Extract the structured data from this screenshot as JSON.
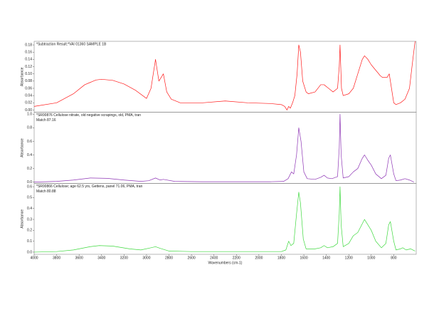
{
  "chart_data": [
    {
      "type": "line",
      "title": "*Subtraction Result:*VAI 01360 SAMPLE 1B",
      "y_label": "Absorbance",
      "xlim": [
        4000,
        600
      ],
      "ylim": [
        -0.006,
        0.19
      ],
      "yticks": [
        {
          "value": 0,
          "label": "0.00"
        },
        0.02,
        0.04,
        0.06,
        0.08,
        {
          "value": 0.1,
          "label": "0.10"
        },
        0.12,
        0.14,
        0.16,
        0.18
      ],
      "color": "#ff1a1a",
      "x": [
        4000,
        3800,
        3650,
        3550,
        3450,
        3400,
        3300,
        3200,
        3100,
        3000,
        2960,
        2920,
        2890,
        2870,
        2850,
        2820,
        2780,
        2700,
        2500,
        2300,
        2100,
        1900,
        1800,
        1770,
        1750,
        1735,
        1720,
        1700,
        1680,
        1660,
        1645,
        1630,
        1610,
        1580,
        1560,
        1500,
        1450,
        1420,
        1380,
        1340,
        1300,
        1285,
        1278,
        1265,
        1250,
        1200,
        1160,
        1120,
        1080,
        1060,
        1030,
        1000,
        960,
        920,
        900,
        860,
        840,
        820,
        800,
        780,
        740,
        700,
        660,
        630,
        610
      ],
      "values": [
        0.01,
        0.02,
        0.045,
        0.07,
        0.083,
        0.085,
        0.082,
        0.072,
        0.055,
        0.032,
        0.06,
        0.14,
        0.08,
        0.09,
        0.1,
        0.05,
        0.03,
        0.02,
        0.02,
        0.025,
        0.02,
        0.018,
        0.015,
        0.01,
        0.0,
        0.01,
        0.005,
        0.02,
        0.04,
        0.1,
        0.18,
        0.16,
        0.08,
        0.05,
        0.045,
        0.05,
        0.07,
        0.07,
        0.06,
        0.05,
        0.06,
        0.12,
        0.18,
        0.06,
        0.04,
        0.045,
        0.06,
        0.1,
        0.14,
        0.15,
        0.14,
        0.125,
        0.11,
        0.095,
        0.09,
        0.09,
        0.1,
        0.06,
        0.02,
        0.015,
        0.02,
        0.03,
        0.06,
        0.14,
        0.19
      ]
    },
    {
      "type": "line",
      "title": "*SR00876 Cellulose nitrate, old negative scrapings, old, PMA, tran",
      "subtitle": "Match 87.16",
      "y_label": "Absorbance",
      "xlim": [
        4000,
        600
      ],
      "ylim": [
        -0.02,
        1.03
      ],
      "yticks": [
        {
          "value": 0,
          "label": "0.0"
        },
        0.2,
        0.4,
        0.6,
        0.8,
        {
          "value": 1,
          "label": "1.0"
        }
      ],
      "color": "#8e35b5",
      "x": [
        4000,
        3800,
        3650,
        3500,
        3350,
        3200,
        3050,
        2980,
        2920,
        2880,
        2850,
        2750,
        2500,
        2200,
        1900,
        1780,
        1740,
        1710,
        1690,
        1665,
        1645,
        1625,
        1600,
        1570,
        1500,
        1450,
        1420,
        1390,
        1350,
        1300,
        1285,
        1278,
        1268,
        1250,
        1200,
        1160,
        1120,
        1080,
        1060,
        1030,
        1000,
        960,
        910,
        870,
        845,
        830,
        800,
        780,
        740,
        700,
        660,
        620
      ],
      "values": [
        0.0,
        0.01,
        0.03,
        0.06,
        0.055,
        0.03,
        0.01,
        0.02,
        0.06,
        0.03,
        0.04,
        0.01,
        0.005,
        0.005,
        0.005,
        0.01,
        0.05,
        0.15,
        0.12,
        0.4,
        0.8,
        0.6,
        0.15,
        0.05,
        0.04,
        0.07,
        0.1,
        0.06,
        0.05,
        0.08,
        0.5,
        1.0,
        0.4,
        0.06,
        0.08,
        0.15,
        0.2,
        0.35,
        0.4,
        0.32,
        0.25,
        0.12,
        0.05,
        0.1,
        0.35,
        0.4,
        0.12,
        0.02,
        0.03,
        0.05,
        0.03,
        0.0
      ]
    },
    {
      "type": "line",
      "title": "*SR00866 Cellulose; age 62.5 yrs, Gettens, panel 71.06, PMA, tran",
      "subtitle": "Match 80.88",
      "y_label": "Absorbance",
      "x_label": "Wavenumbers (cm-1)",
      "xlim": [
        4000,
        600
      ],
      "ylim": [
        -0.02,
        0.63
      ],
      "xticks": [
        4000,
        3800,
        3600,
        3400,
        3200,
        3000,
        2800,
        2600,
        2400,
        2200,
        2000,
        1800,
        1600,
        1400,
        1200,
        1000,
        800
      ],
      "yticks": [
        {
          "value": 0,
          "label": "0.0"
        },
        0.1,
        0.2,
        0.3,
        0.4,
        0.5,
        0.6
      ],
      "color": "#3fd93f",
      "x": [
        4000,
        3800,
        3650,
        3500,
        3420,
        3300,
        3150,
        3050,
        2960,
        2920,
        2880,
        2800,
        2600,
        2300,
        2000,
        1800,
        1760,
        1735,
        1715,
        1690,
        1665,
        1645,
        1630,
        1605,
        1580,
        1500,
        1450,
        1420,
        1390,
        1340,
        1300,
        1285,
        1278,
        1268,
        1250,
        1200,
        1160,
        1120,
        1080,
        1060,
        1030,
        1000,
        960,
        910,
        870,
        845,
        830,
        800,
        780,
        740,
        720,
        690,
        650,
        610
      ],
      "values": [
        0.0,
        0.005,
        0.02,
        0.05,
        0.06,
        0.055,
        0.03,
        0.02,
        0.04,
        0.05,
        0.035,
        0.01,
        0.005,
        0.005,
        0.005,
        0.005,
        0.02,
        0.1,
        0.06,
        0.08,
        0.35,
        0.55,
        0.45,
        0.12,
        0.03,
        0.03,
        0.04,
        0.06,
        0.04,
        0.05,
        0.08,
        0.35,
        0.6,
        0.25,
        0.05,
        0.08,
        0.15,
        0.18,
        0.26,
        0.3,
        0.25,
        0.2,
        0.1,
        0.04,
        0.08,
        0.25,
        0.28,
        0.1,
        0.02,
        0.03,
        0.04,
        0.02,
        0.03,
        0.01
      ]
    }
  ]
}
